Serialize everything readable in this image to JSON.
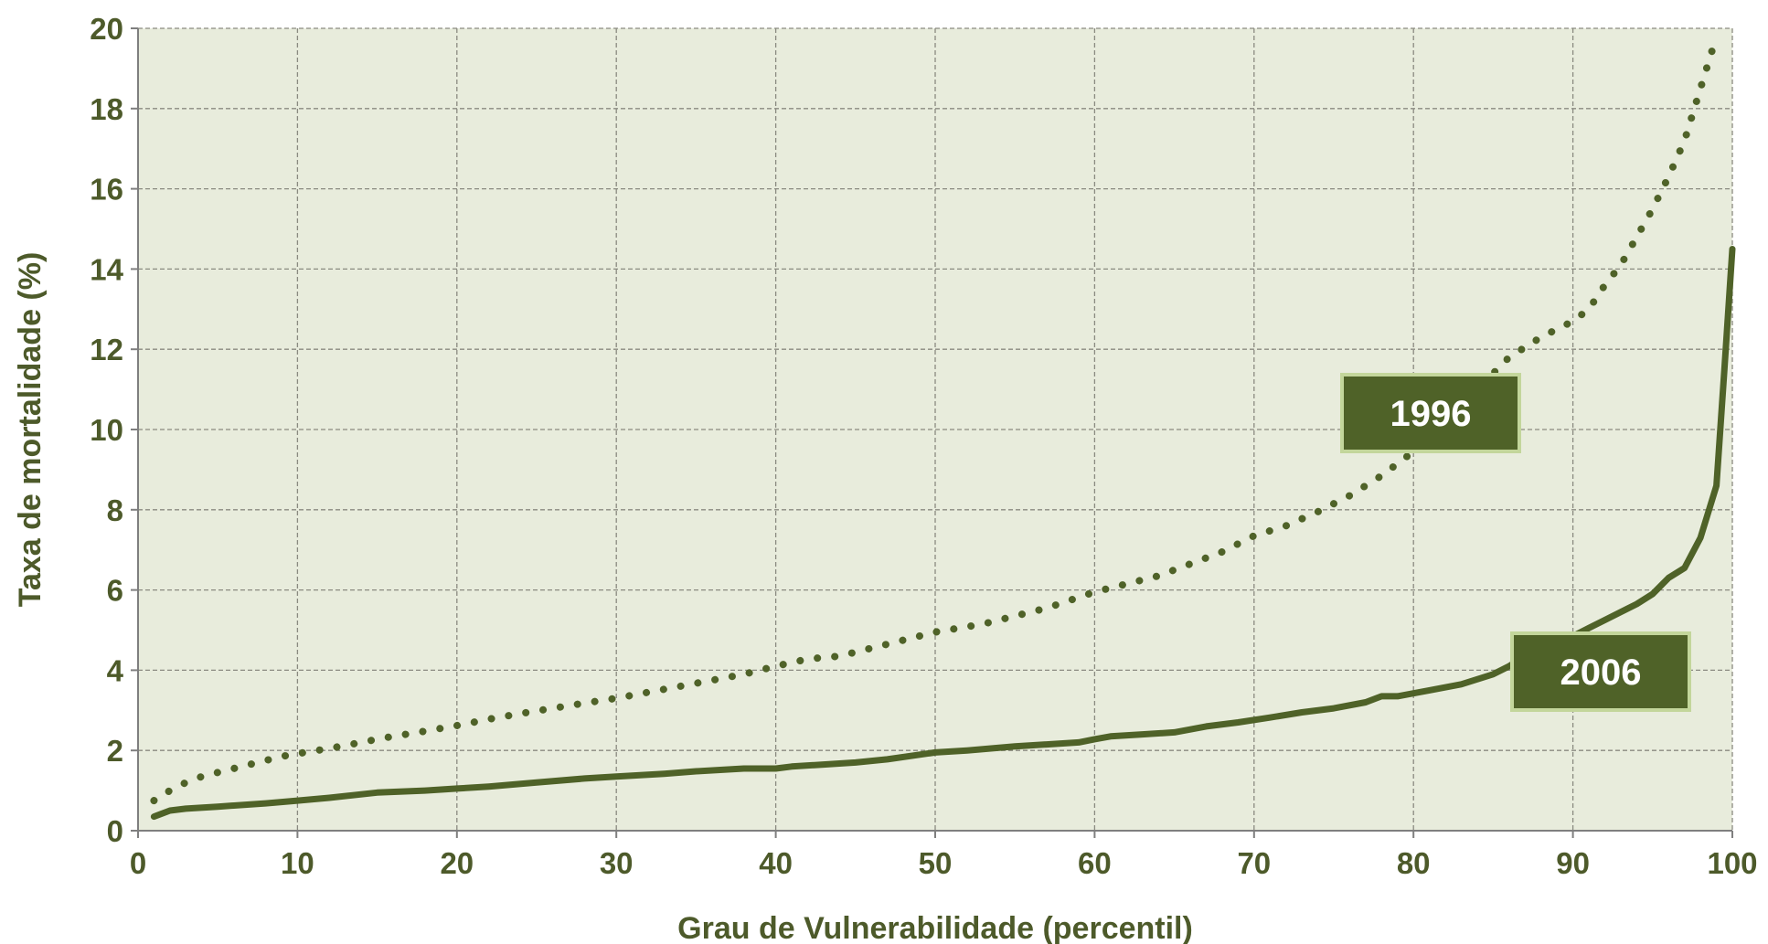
{
  "colors": {
    "plot_bg": "#e8ecdc",
    "grid": "#8a8a80",
    "axis": "#7f7f7f",
    "text": "#4d5a2a",
    "series": "#4f6228",
    "label_bg": "#4f6228",
    "label_border": "#c3d69b"
  },
  "chart_data": {
    "type": "line",
    "title": "",
    "xlabel": "Grau de Vulnerabilidade  (percentil)",
    "ylabel": "Taxa de mortalidade (%)",
    "xlim": [
      0,
      100
    ],
    "ylim": [
      0,
      20
    ],
    "xticks": [
      "0",
      "10",
      "20",
      "30",
      "40",
      "50",
      "60",
      "70",
      "80",
      "90",
      "100"
    ],
    "yticks": [
      "0",
      "2",
      "4",
      "6",
      "8",
      "10",
      "12",
      "14",
      "16",
      "18",
      "20"
    ],
    "grid": true,
    "series": [
      {
        "name": "1996",
        "style": "dotted",
        "label_position": "above the curve near x=78",
        "points": [
          [
            1,
            0.75
          ],
          [
            2,
            1.0
          ],
          [
            3,
            1.2
          ],
          [
            4,
            1.35
          ],
          [
            5,
            1.45
          ],
          [
            6,
            1.55
          ],
          [
            7,
            1.65
          ],
          [
            8,
            1.75
          ],
          [
            9,
            1.85
          ],
          [
            10,
            1.92
          ],
          [
            12,
            2.05
          ],
          [
            14,
            2.2
          ],
          [
            15,
            2.28
          ],
          [
            16,
            2.35
          ],
          [
            18,
            2.48
          ],
          [
            20,
            2.62
          ],
          [
            22,
            2.78
          ],
          [
            24,
            2.92
          ],
          [
            26,
            3.05
          ],
          [
            28,
            3.18
          ],
          [
            30,
            3.3
          ],
          [
            32,
            3.45
          ],
          [
            34,
            3.6
          ],
          [
            36,
            3.75
          ],
          [
            38,
            3.9
          ],
          [
            40,
            4.1
          ],
          [
            42,
            4.28
          ],
          [
            44,
            4.35
          ],
          [
            45,
            4.45
          ],
          [
            47,
            4.65
          ],
          [
            50,
            4.95
          ],
          [
            53,
            5.15
          ],
          [
            55,
            5.35
          ],
          [
            57,
            5.55
          ],
          [
            60,
            5.95
          ],
          [
            62,
            6.15
          ],
          [
            64,
            6.35
          ],
          [
            66,
            6.65
          ],
          [
            68,
            6.95
          ],
          [
            70,
            7.35
          ],
          [
            72,
            7.6
          ],
          [
            74,
            7.95
          ],
          [
            76,
            8.35
          ],
          [
            78,
            8.85
          ],
          [
            80,
            9.45
          ],
          [
            82,
            10.2
          ],
          [
            84,
            11.0
          ],
          [
            86,
            11.8
          ],
          [
            88,
            12.3
          ],
          [
            90,
            12.7
          ],
          [
            91,
            13.0
          ],
          [
            92,
            13.6
          ],
          [
            93,
            14.1
          ],
          [
            94,
            14.8
          ],
          [
            95,
            15.5
          ],
          [
            96,
            16.3
          ],
          [
            97,
            17.2
          ],
          [
            98,
            18.5
          ],
          [
            99,
            19.8
          ]
        ]
      },
      {
        "name": "2006",
        "style": "solid",
        "label_position": "right of the curve near x=89",
        "points": [
          [
            1,
            0.35
          ],
          [
            2,
            0.5
          ],
          [
            3,
            0.55
          ],
          [
            5,
            0.6
          ],
          [
            8,
            0.68
          ],
          [
            10,
            0.75
          ],
          [
            12,
            0.82
          ],
          [
            15,
            0.95
          ],
          [
            18,
            1.0
          ],
          [
            20,
            1.05
          ],
          [
            22,
            1.1
          ],
          [
            25,
            1.2
          ],
          [
            28,
            1.3
          ],
          [
            30,
            1.35
          ],
          [
            33,
            1.42
          ],
          [
            35,
            1.48
          ],
          [
            38,
            1.55
          ],
          [
            40,
            1.55
          ],
          [
            41,
            1.6
          ],
          [
            43,
            1.65
          ],
          [
            45,
            1.7
          ],
          [
            47,
            1.78
          ],
          [
            50,
            1.95
          ],
          [
            52,
            2.0
          ],
          [
            55,
            2.1
          ],
          [
            57,
            2.15
          ],
          [
            59,
            2.2
          ],
          [
            60,
            2.28
          ],
          [
            61,
            2.35
          ],
          [
            63,
            2.4
          ],
          [
            65,
            2.45
          ],
          [
            67,
            2.6
          ],
          [
            69,
            2.7
          ],
          [
            71,
            2.82
          ],
          [
            73,
            2.95
          ],
          [
            75,
            3.05
          ],
          [
            77,
            3.2
          ],
          [
            78,
            3.35
          ],
          [
            79,
            3.35
          ],
          [
            81,
            3.5
          ],
          [
            83,
            3.65
          ],
          [
            85,
            3.9
          ],
          [
            86,
            4.1
          ],
          [
            87,
            4.35
          ],
          [
            88,
            4.55
          ],
          [
            89,
            4.7
          ],
          [
            90,
            4.85
          ],
          [
            91,
            5.05
          ],
          [
            92,
            5.25
          ],
          [
            93,
            5.45
          ],
          [
            94,
            5.65
          ],
          [
            95,
            5.9
          ],
          [
            96,
            6.3
          ],
          [
            97,
            6.55
          ],
          [
            98,
            7.3
          ],
          [
            99,
            8.6
          ],
          [
            99.5,
            11.5
          ],
          [
            100,
            14.5
          ]
        ]
      }
    ]
  }
}
